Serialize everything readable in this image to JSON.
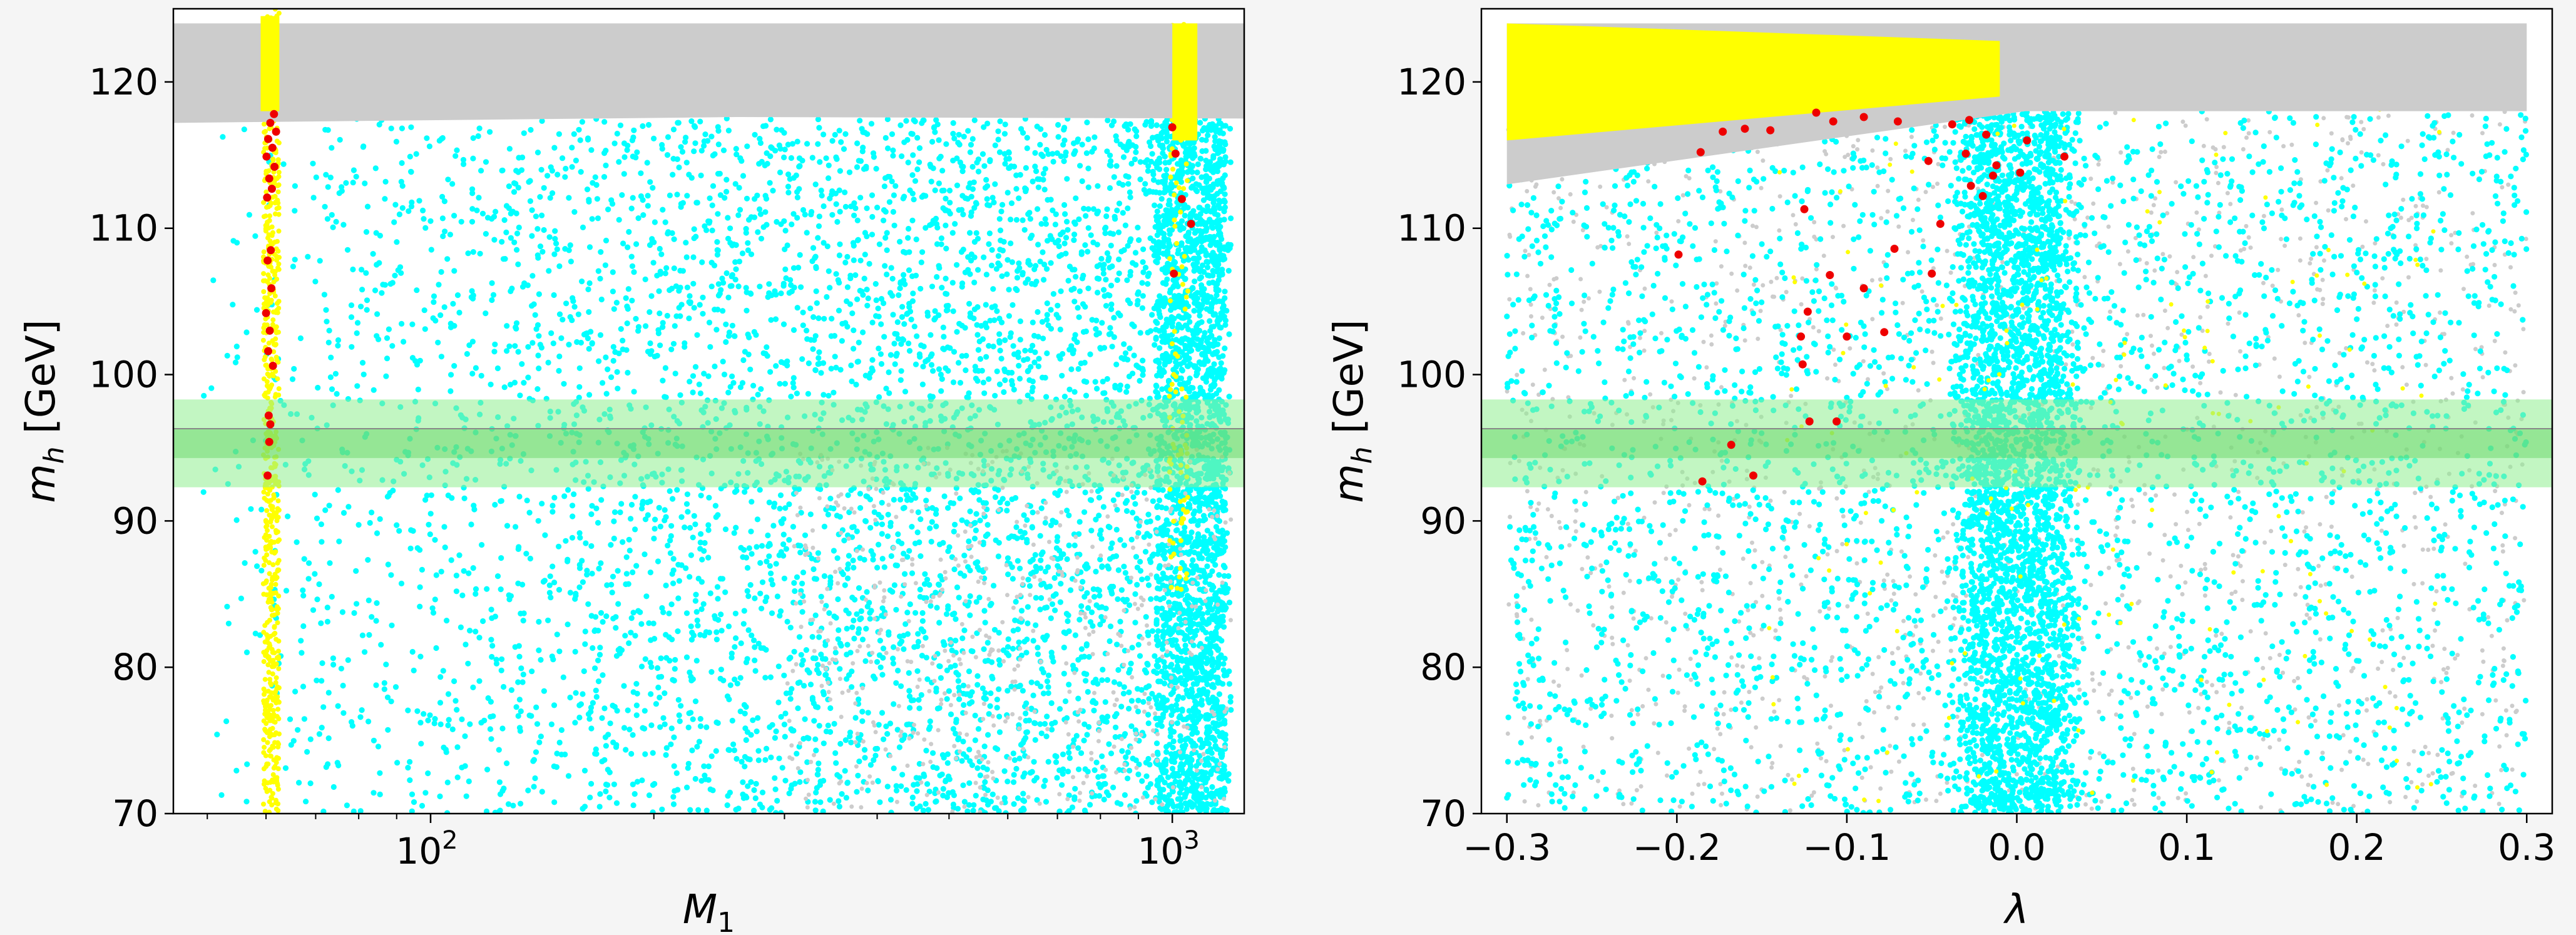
{
  "chart_data": [
    {
      "type": "scatter",
      "xlabel_html": "M_1",
      "xlabel_main": "M",
      "xlabel_sub": "1",
      "ylabel_main": "m",
      "ylabel_sub": "h",
      "ylabel_rest": " [GeV]",
      "xscale": "log",
      "xlim": [
        45,
        1250
      ],
      "ylim": [
        70,
        125
      ],
      "xticks": [
        {
          "value": 100,
          "base": "10",
          "exp": "2"
        },
        {
          "value": 1000,
          "base": "10",
          "exp": "3"
        }
      ],
      "yticks": [
        {
          "value": 70,
          "label": "70"
        },
        {
          "value": 80,
          "label": "80"
        },
        {
          "value": 90,
          "label": "90"
        },
        {
          "value": 100,
          "label": "100"
        },
        {
          "value": 110,
          "label": "110"
        },
        {
          "value": 120,
          "label": "120"
        }
      ],
      "bands": [
        {
          "y_low": 92.3,
          "y_high": 98.3,
          "color": "#90ee90",
          "opacity": 0.55
        },
        {
          "y_low": 94.3,
          "y_high": 96.3,
          "color": "#5fd35f",
          "opacity": 0.45
        }
      ],
      "hline": {
        "y": 96.3,
        "color": "#888888"
      },
      "colors": {
        "gray": "#cccccc",
        "cyan": "#00ffff",
        "yellow": "#ffff00",
        "red": "#ee0000"
      },
      "red_points": [
        [
          61.5,
          117.8
        ],
        [
          60.8,
          117.2
        ],
        [
          61.9,
          116.6
        ],
        [
          60.4,
          116.1
        ],
        [
          61.2,
          115.5
        ],
        [
          60.1,
          114.9
        ],
        [
          61.6,
          114.2
        ],
        [
          60.6,
          113.4
        ],
        [
          61.1,
          112.7
        ],
        [
          60.2,
          112.1
        ],
        [
          60.9,
          108.5
        ],
        [
          60.3,
          107.8
        ],
        [
          61.0,
          105.9
        ],
        [
          60.0,
          104.2
        ],
        [
          60.7,
          103.0
        ],
        [
          60.4,
          101.6
        ],
        [
          61.3,
          100.6
        ],
        [
          60.5,
          97.2
        ],
        [
          60.8,
          96.6
        ],
        [
          60.6,
          95.4
        ],
        [
          60.3,
          93.1
        ],
        [
          1000,
          116.9
        ],
        [
          1010,
          115.1
        ],
        [
          1030,
          112.0
        ],
        [
          1060,
          110.3
        ],
        [
          1005,
          106.9
        ]
      ]
    },
    {
      "type": "scatter",
      "xlabel_main": "λ",
      "ylabel_main": "m",
      "ylabel_sub": "h",
      "ylabel_rest": " [GeV]",
      "xscale": "linear",
      "xlim": [
        -0.315,
        0.315
      ],
      "ylim": [
        70,
        125
      ],
      "xticks": [
        {
          "value": -0.3,
          "label": "−0.3"
        },
        {
          "value": -0.2,
          "label": "−0.2"
        },
        {
          "value": -0.1,
          "label": "−0.1"
        },
        {
          "value": 0.0,
          "label": "0.0"
        },
        {
          "value": 0.1,
          "label": "0.1"
        },
        {
          "value": 0.2,
          "label": "0.2"
        },
        {
          "value": 0.3,
          "label": "0.3"
        }
      ],
      "yticks": [
        {
          "value": 70,
          "label": "70"
        },
        {
          "value": 80,
          "label": "80"
        },
        {
          "value": 90,
          "label": "90"
        },
        {
          "value": 100,
          "label": "100"
        },
        {
          "value": 110,
          "label": "110"
        },
        {
          "value": 120,
          "label": "120"
        }
      ],
      "bands": [
        {
          "y_low": 92.3,
          "y_high": 98.3,
          "color": "#90ee90",
          "opacity": 0.55
        },
        {
          "y_low": 94.3,
          "y_high": 96.3,
          "color": "#5fd35f",
          "opacity": 0.45
        }
      ],
      "hline": {
        "y": 96.3,
        "color": "#888888"
      },
      "colors": {
        "gray": "#cccccc",
        "cyan": "#00ffff",
        "yellow": "#ffff00",
        "red": "#ee0000"
      },
      "red_points": [
        [
          -0.186,
          115.2
        ],
        [
          -0.173,
          116.6
        ],
        [
          -0.16,
          116.8
        ],
        [
          -0.145,
          116.7
        ],
        [
          -0.118,
          117.9
        ],
        [
          -0.108,
          117.3
        ],
        [
          -0.09,
          117.6
        ],
        [
          -0.07,
          117.3
        ],
        [
          -0.038,
          117.1
        ],
        [
          -0.028,
          117.4
        ],
        [
          -0.018,
          116.4
        ],
        [
          0.006,
          116.0
        ],
        [
          -0.052,
          114.6
        ],
        [
          -0.03,
          115.1
        ],
        [
          -0.012,
          114.3
        ],
        [
          0.028,
          114.9
        ],
        [
          -0.014,
          113.6
        ],
        [
          -0.027,
          112.9
        ],
        [
          0.002,
          113.8
        ],
        [
          -0.02,
          112.2
        ],
        [
          -0.045,
          110.3
        ],
        [
          -0.125,
          111.3
        ],
        [
          -0.199,
          108.2
        ],
        [
          -0.072,
          108.6
        ],
        [
          -0.11,
          106.8
        ],
        [
          -0.05,
          106.9
        ],
        [
          -0.09,
          105.9
        ],
        [
          -0.123,
          104.3
        ],
        [
          -0.127,
          102.6
        ],
        [
          -0.1,
          102.6
        ],
        [
          -0.078,
          102.9
        ],
        [
          -0.126,
          100.7
        ],
        [
          -0.122,
          96.8
        ],
        [
          -0.106,
          96.8
        ],
        [
          -0.168,
          95.2
        ],
        [
          -0.155,
          93.1
        ],
        [
          -0.185,
          92.7
        ]
      ]
    }
  ]
}
